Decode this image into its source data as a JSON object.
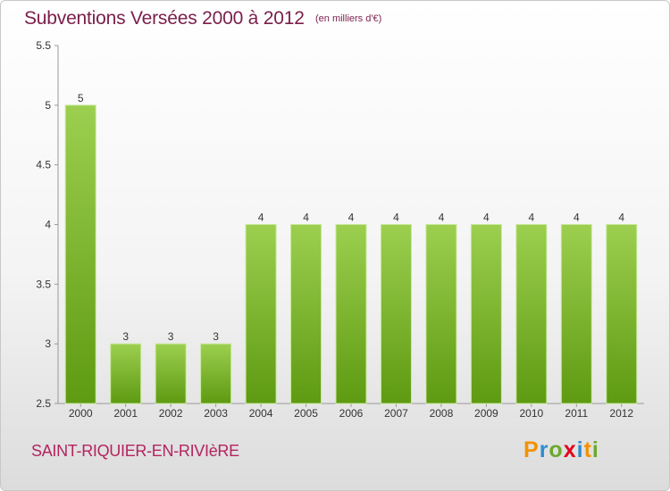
{
  "header": {
    "title": "Subventions Versées 2000 à 2012",
    "subtitle": "(en milliers d'€)"
  },
  "footer": {
    "commune": "SAINT-RIQUIER-EN-RIVIèRE",
    "logo": [
      "P",
      "r",
      "o",
      "x",
      "i",
      "t",
      "i"
    ]
  },
  "colors": {
    "bar_top": "#9ccf4f",
    "bar_bottom": "#5e9a12",
    "title": "#7a1e4a",
    "commune": "#b4245e"
  },
  "chart_data": {
    "type": "bar",
    "categories": [
      "2000",
      "2001",
      "2002",
      "2003",
      "2004",
      "2005",
      "2006",
      "2007",
      "2008",
      "2009",
      "2010",
      "2011",
      "2012"
    ],
    "values": [
      5,
      3,
      3,
      3,
      4,
      4,
      4,
      4,
      4,
      4,
      4,
      4,
      4
    ],
    "ylim": [
      2.5,
      5.5
    ],
    "yticks": [
      "2.5",
      "3",
      "3.5",
      "4",
      "4.5",
      "5",
      "5.5"
    ],
    "grid": false,
    "data_labels": true
  }
}
